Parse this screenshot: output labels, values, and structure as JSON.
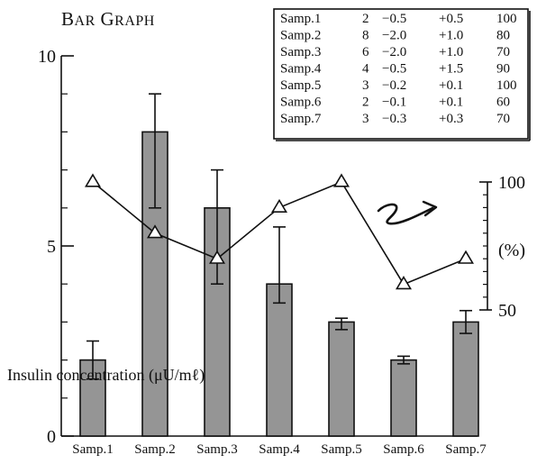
{
  "chart_data": {
    "type": "bar",
    "title": "Bar Graph",
    "ylabel": "Insulin concentration (μU/mℓ)",
    "ylim": [
      0,
      10
    ],
    "yticks": [
      0,
      5,
      10
    ],
    "categories": [
      "Samp.1",
      "Samp.2",
      "Samp.3",
      "Samp.4",
      "Samp.5",
      "Samp.6",
      "Samp.7"
    ],
    "values": [
      2,
      8,
      6,
      4,
      3,
      2,
      3
    ],
    "errors_minus": [
      0.5,
      2.0,
      2.0,
      0.5,
      0.2,
      0.1,
      0.3
    ],
    "errors_plus": [
      0.5,
      1.0,
      1.0,
      1.5,
      0.1,
      0.1,
      0.3
    ],
    "percent_series": {
      "values": [
        100,
        80,
        70,
        90,
        100,
        60,
        70
      ],
      "ylim": [
        50,
        100
      ],
      "yticks": [
        50,
        100
      ],
      "unit_label": "(%)",
      "marker": "triangle"
    },
    "bar_color": "#959595",
    "arrow_glyph": "⇝",
    "data_table": {
      "rows": [
        [
          "Samp.1",
          "2",
          "−0.5",
          "+0.5",
          "100"
        ],
        [
          "Samp.2",
          "8",
          "−2.0",
          "+1.0",
          "80"
        ],
        [
          "Samp.3",
          "6",
          "−2.0",
          "+1.0",
          "70"
        ],
        [
          "Samp.4",
          "4",
          "−0.5",
          "+1.5",
          "90"
        ],
        [
          "Samp.5",
          "3",
          "−0.2",
          "+0.1",
          "100"
        ],
        [
          "Samp.6",
          "2",
          "−0.1",
          "+0.1",
          "60"
        ],
        [
          "Samp.7",
          "3",
          "−0.3",
          "+0.3",
          "70"
        ]
      ]
    }
  }
}
